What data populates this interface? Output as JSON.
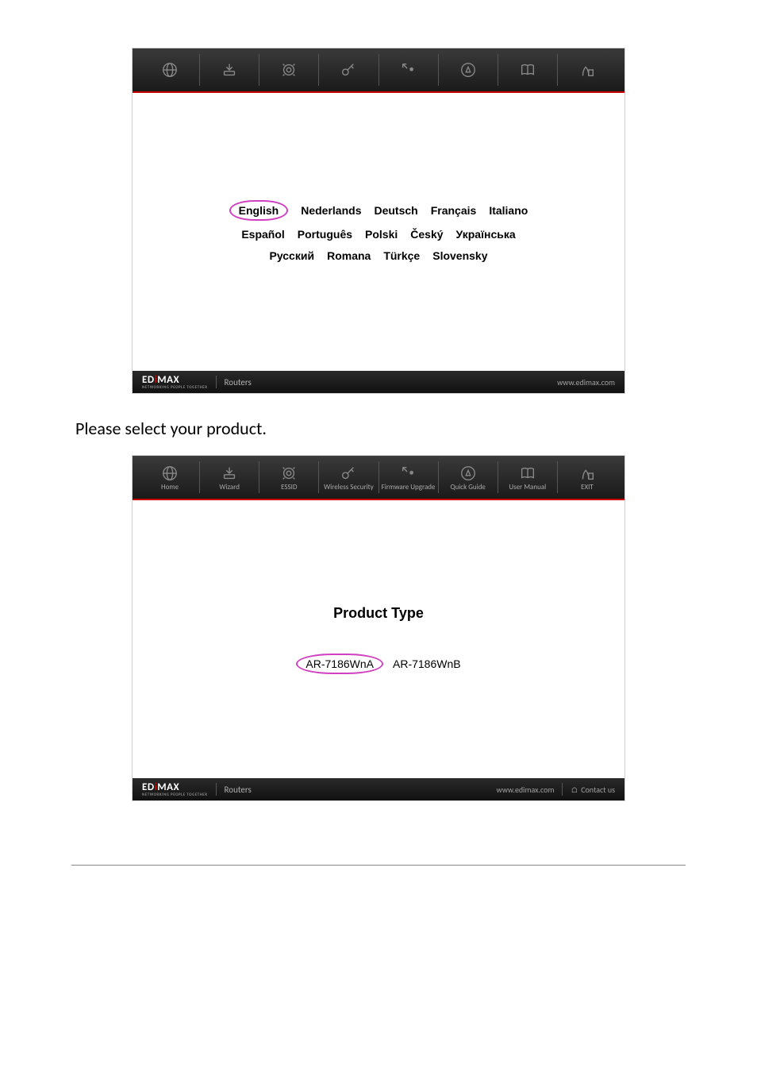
{
  "nav": {
    "items": [
      {
        "name": "home",
        "label": "Home"
      },
      {
        "name": "wizard",
        "label": "Wizard"
      },
      {
        "name": "essid",
        "label": "ESSID"
      },
      {
        "name": "wireless-security",
        "label": "Wireless\nSecurity"
      },
      {
        "name": "firmware-upgrade",
        "label": "Firmware\nUpgrade"
      },
      {
        "name": "quick-guide",
        "label": "Quick Guide"
      },
      {
        "name": "user-manual",
        "label": "User Manual"
      },
      {
        "name": "exit",
        "label": "EXIT"
      }
    ]
  },
  "languages": {
    "row1": [
      "English",
      "Nederlands",
      "Deutsch",
      "Français",
      "Italiano"
    ],
    "row2": [
      "Español",
      "Português",
      "Polski",
      "Český",
      "Українська"
    ],
    "row3": [
      "Русский",
      "Romana",
      "Türkçe",
      "Slovensky"
    ],
    "selected": "English"
  },
  "logo": {
    "text": "EDIMAX",
    "sub": "NETWORKING PEOPLE TOGETHER"
  },
  "footer": {
    "category": "Routers",
    "url": "www.edimax.com",
    "contact": "Contact us"
  },
  "instruction": "Please select your product.",
  "product": {
    "title": "Product Type",
    "options": [
      "AR-7186WnA",
      "AR-7186WnB"
    ],
    "selected": "AR-7186WnA"
  },
  "colors": {
    "accent_red": "#cc0000",
    "highlight_circle": "#d040c0",
    "topbar_dark": "#1a1a1a",
    "icon_gray": "#aaaaaa"
  }
}
